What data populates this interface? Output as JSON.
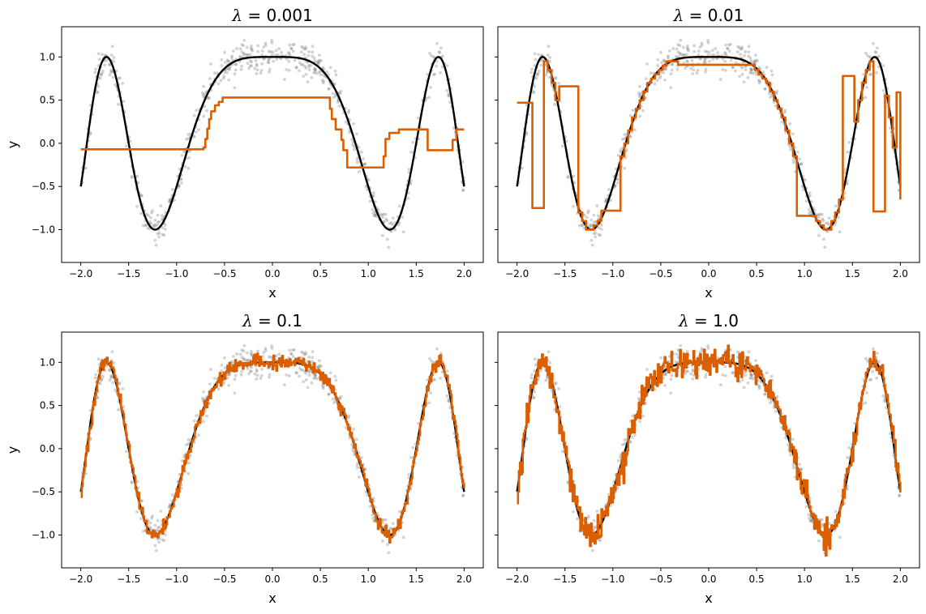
{
  "colors": {
    "true_function": "#000000",
    "fit": "#d95f02",
    "noisy_points": "#808080"
  },
  "chart_data": [
    {
      "type": "line",
      "title_symbol": "λ",
      "title_value": " = 0.001",
      "xlabel": "x",
      "ylabel": "y",
      "xlim": [
        -2.2,
        2.2
      ],
      "ylim": [
        -1.38,
        1.35
      ],
      "xticks": [
        -2.0,
        -1.5,
        -1.0,
        -0.5,
        0.0,
        0.5,
        1.0,
        1.5,
        2.0
      ],
      "xtick_labels": [
        "−2.0",
        "−1.5",
        "−1.0",
        "−0.5",
        "0.0",
        "0.5",
        "1.0",
        "1.5",
        "2.0"
      ],
      "yticks": [
        -1.0,
        -0.5,
        0.0,
        0.5,
        1.0
      ],
      "ytick_labels": [
        "−1.0",
        "−0.5",
        "0.0",
        "0.5",
        "1.0"
      ],
      "show_yticklabels": true,
      "true_function": "cos(2*pi*x^2/3)",
      "fit_type": "step",
      "fit_steps": [
        [
          -2.0,
          -0.07
        ],
        [
          -0.72,
          -0.05
        ],
        [
          -0.7,
          0.05
        ],
        [
          -0.68,
          0.17
        ],
        [
          -0.66,
          0.28
        ],
        [
          -0.64,
          0.37
        ],
        [
          -0.6,
          0.44
        ],
        [
          -0.56,
          0.48
        ],
        [
          -0.52,
          0.53
        ],
        [
          0.6,
          0.4
        ],
        [
          0.62,
          0.28
        ],
        [
          0.66,
          0.16
        ],
        [
          0.72,
          0.04
        ],
        [
          0.74,
          -0.08
        ],
        [
          0.78,
          -0.28
        ],
        [
          1.16,
          -0.15
        ],
        [
          1.18,
          0.05
        ],
        [
          1.22,
          0.12
        ],
        [
          1.32,
          0.16
        ],
        [
          1.62,
          -0.08
        ],
        [
          1.88,
          0.04
        ],
        [
          1.92,
          0.16
        ],
        [
          2.0,
          0.16
        ]
      ],
      "noise_scale": 0.09
    },
    {
      "type": "line",
      "title_symbol": "λ",
      "title_value": " = 0.01",
      "xlabel": "x",
      "ylabel": "",
      "xlim": [
        -2.2,
        2.2
      ],
      "ylim": [
        -1.38,
        1.35
      ],
      "xticks": [
        -2.0,
        -1.5,
        -1.0,
        -0.5,
        0.0,
        0.5,
        1.0,
        1.5,
        2.0
      ],
      "xtick_labels": [
        "−2.0",
        "−1.5",
        "−1.0",
        "−0.5",
        "0.0",
        "0.5",
        "1.0",
        "1.5",
        "2.0"
      ],
      "yticks": [
        -1.0,
        -0.5,
        0.0,
        0.5,
        1.0
      ],
      "ytick_labels": [],
      "show_yticklabels": false,
      "true_function": "cos(2*pi*x^2/3)",
      "fit_type": "step_blend",
      "fit_levels": [
        [
          -2.0,
          -1.85,
          0.47
        ],
        [
          -1.56,
          -1.36,
          0.66
        ],
        [
          -1.85,
          -1.72,
          -0.75
        ],
        [
          -1.15,
          -0.92,
          -0.78
        ],
        [
          -0.35,
          0.45,
          0.91
        ],
        [
          0.92,
          1.12,
          -0.84
        ],
        [
          1.38,
          1.52,
          0.78
        ],
        [
          1.7,
          1.84,
          -0.79
        ],
        [
          1.96,
          2.0,
          0.59
        ]
      ],
      "noise_scale": 0.09
    },
    {
      "type": "line",
      "title_symbol": "λ",
      "title_value": " = 0.1",
      "xlabel": "x",
      "ylabel": "y",
      "xlim": [
        -2.2,
        2.2
      ],
      "ylim": [
        -1.38,
        1.35
      ],
      "xticks": [
        -2.0,
        -1.5,
        -1.0,
        -0.5,
        0.0,
        0.5,
        1.0,
        1.5,
        2.0
      ],
      "xtick_labels": [
        "−2.0",
        "−1.5",
        "−1.0",
        "−0.5",
        "0.0",
        "0.5",
        "1.0",
        "1.5",
        "2.0"
      ],
      "yticks": [
        -1.0,
        -0.5,
        0.0,
        0.5,
        1.0
      ],
      "ytick_labels": [
        "−1.0",
        "−0.5",
        "0.0",
        "0.5",
        "1.0"
      ],
      "show_yticklabels": true,
      "true_function": "cos(2*pi*x^2/3)",
      "fit_type": "noisy",
      "fit_noise": 0.04,
      "noise_scale": 0.09
    },
    {
      "type": "line",
      "title_symbol": "λ",
      "title_value": " = 1.0",
      "xlabel": "x",
      "ylabel": "",
      "xlim": [
        -2.2,
        2.2
      ],
      "ylim": [
        -1.38,
        1.35
      ],
      "xticks": [
        -2.0,
        -1.5,
        -1.0,
        -0.5,
        0.0,
        0.5,
        1.0,
        1.5,
        2.0
      ],
      "xtick_labels": [
        "−2.0",
        "−1.5",
        "−1.0",
        "−0.5",
        "0.0",
        "0.5",
        "1.0",
        "1.5",
        "2.0"
      ],
      "yticks": [
        -1.0,
        -0.5,
        0.0,
        0.5,
        1.0
      ],
      "ytick_labels": [],
      "show_yticklabels": false,
      "true_function": "cos(2*pi*x^2/3)",
      "fit_type": "noisy",
      "fit_noise": 0.085,
      "noise_scale": 0.09
    }
  ]
}
